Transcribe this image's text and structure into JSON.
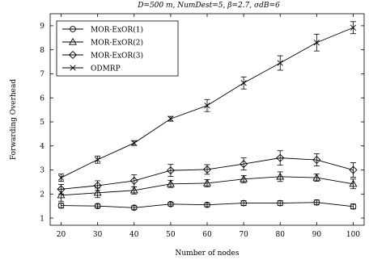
{
  "chart_data": {
    "type": "line",
    "title": "D=500 m, NumDest=5, β=2.7, σdB=6",
    "xlabel": "Number of nodes",
    "ylabel": "Forwarding Overhead",
    "x": [
      20,
      30,
      40,
      50,
      60,
      70,
      80,
      90,
      100
    ],
    "xlim": [
      17,
      103
    ],
    "ylim": [
      0.7,
      9.5
    ],
    "yticks": [
      1,
      2,
      3,
      4,
      5,
      6,
      7,
      8,
      9
    ],
    "legend_position": "top-left",
    "grid": false,
    "series": [
      {
        "name": "MOR-ExOR(1)",
        "marker": "circle",
        "values": [
          1.52,
          1.5,
          1.43,
          1.58,
          1.55,
          1.62,
          1.62,
          1.65,
          1.48
        ],
        "error": [
          0.1,
          0.08,
          0.08,
          0.08,
          0.08,
          0.1,
          0.1,
          0.1,
          0.1
        ]
      },
      {
        "name": "MOR-ExOR(2)",
        "marker": "triangle",
        "values": [
          1.95,
          2.05,
          2.15,
          2.42,
          2.45,
          2.62,
          2.72,
          2.68,
          2.42
        ],
        "error": [
          0.25,
          0.2,
          0.15,
          0.15,
          0.15,
          0.15,
          0.2,
          0.15,
          0.2
        ]
      },
      {
        "name": "MOR-ExOR(3)",
        "marker": "diamond",
        "values": [
          2.2,
          2.35,
          2.55,
          2.98,
          3.02,
          3.25,
          3.5,
          3.42,
          3.0
        ],
        "error": [
          0.2,
          0.2,
          0.25,
          0.25,
          0.2,
          0.25,
          0.3,
          0.25,
          0.3
        ]
      },
      {
        "name": "ODMRP",
        "marker": "cross",
        "values": [
          2.68,
          3.43,
          4.12,
          5.13,
          5.68,
          6.62,
          7.45,
          8.3,
          8.92
        ],
        "error": [
          0.15,
          0.15,
          0.1,
          0.1,
          0.25,
          0.25,
          0.3,
          0.35,
          0.25
        ]
      }
    ]
  }
}
